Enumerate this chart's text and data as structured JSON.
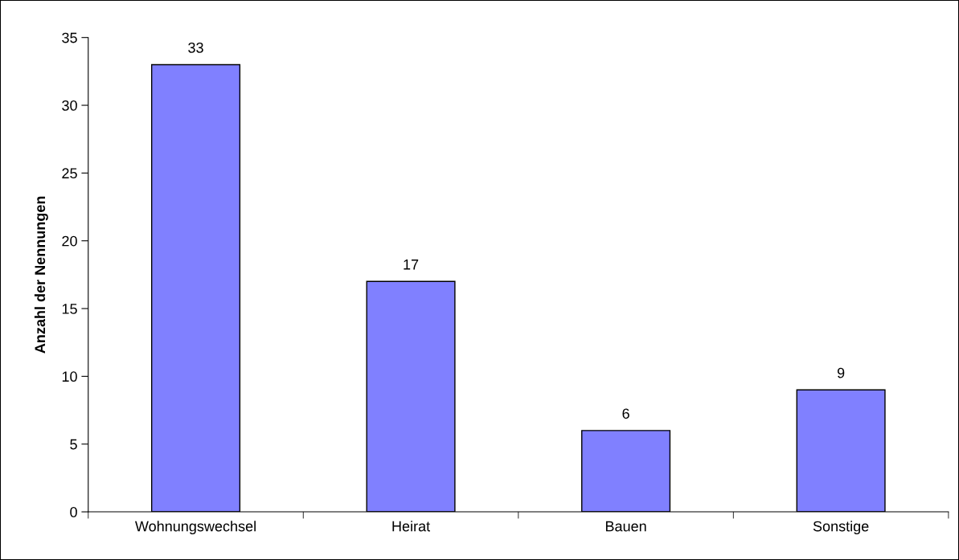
{
  "chart_data": {
    "type": "bar",
    "ylabel": "Anzahl der Nennungen",
    "categories": [
      "Wohnungswechsel",
      "Heirat",
      "Bauen",
      "Sonstige"
    ],
    "values": [
      33,
      17,
      6,
      9
    ],
    "color": "#8080ff",
    "ylim": [
      0,
      35
    ],
    "yticks": [
      0,
      5,
      10,
      15,
      20,
      25,
      30,
      35
    ],
    "grid": false,
    "data_labels": true
  }
}
